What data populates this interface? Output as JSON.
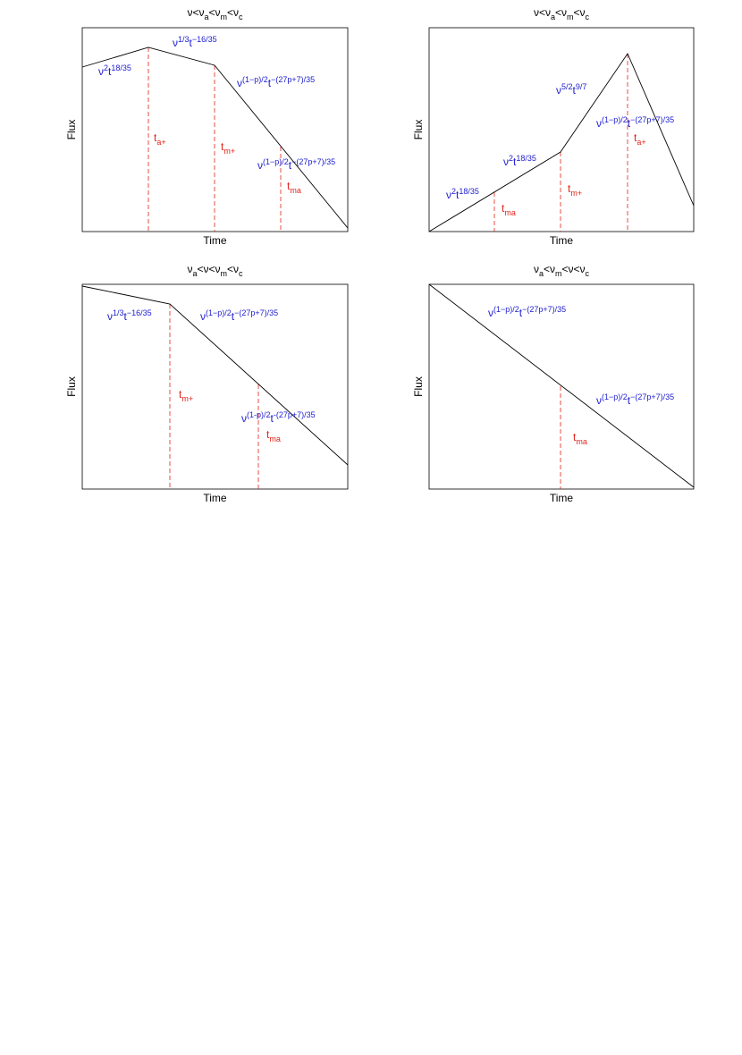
{
  "panels": [
    {
      "title": [
        {
          "base": "ν<ν"
        },
        {
          "sub": "a"
        },
        {
          "base": "<ν"
        },
        {
          "sub": "m"
        },
        {
          "base": "<ν"
        },
        {
          "sub": "c"
        }
      ],
      "xlabel": "Time",
      "ylabel": "Flux",
      "slopes": [
        [
          {
            "base": "ν"
          },
          {
            "sup": "2"
          },
          {
            "base": "t"
          },
          {
            "sup": "18/35"
          }
        ],
        [
          {
            "base": "ν"
          },
          {
            "sup": "1/3"
          },
          {
            "base": "t"
          },
          {
            "sup": "−16/35"
          }
        ],
        [
          {
            "base": "ν"
          },
          {
            "sup": "(1−p)/2"
          },
          {
            "base": "t"
          },
          {
            "sup": "−(27p+7)/35"
          }
        ],
        [
          {
            "base": "ν"
          },
          {
            "sup": "(1−p)/2"
          },
          {
            "base": "t"
          },
          {
            "sup": "−(27p+7)/35"
          }
        ]
      ],
      "times": [
        [
          {
            "base": "t"
          },
          {
            "sub": "a+"
          }
        ],
        [
          {
            "base": "t"
          },
          {
            "sub": "m+"
          }
        ],
        [
          {
            "base": "t"
          },
          {
            "sub": "ma"
          }
        ]
      ]
    },
    {
      "title": [
        {
          "base": "ν<ν"
        },
        {
          "sub": "a"
        },
        {
          "base": "<ν"
        },
        {
          "sub": "m"
        },
        {
          "base": "<ν"
        },
        {
          "sub": "c"
        }
      ],
      "xlabel": "Time",
      "ylabel": "Flux",
      "slopes": [
        [
          {
            "base": "ν"
          },
          {
            "sup": "2"
          },
          {
            "base": "t"
          },
          {
            "sup": "18/35"
          }
        ],
        [
          {
            "base": "ν"
          },
          {
            "sup": "2"
          },
          {
            "base": "t"
          },
          {
            "sup": "18/35"
          }
        ],
        [
          {
            "base": "ν"
          },
          {
            "sup": "5/2"
          },
          {
            "base": "t"
          },
          {
            "sup": "9/7"
          }
        ],
        [
          {
            "base": "ν"
          },
          {
            "sup": "(1−p)/2"
          },
          {
            "base": "t"
          },
          {
            "sup": "−(27p+7)/35"
          }
        ]
      ],
      "times": [
        [
          {
            "base": "t"
          },
          {
            "sub": "a+"
          }
        ],
        [
          {
            "base": "t"
          },
          {
            "sub": "m+"
          }
        ],
        [
          {
            "base": "t"
          },
          {
            "sub": "ma"
          }
        ]
      ]
    },
    {
      "title": [
        {
          "base": "ν"
        },
        {
          "sub": "a"
        },
        {
          "base": "<ν<ν"
        },
        {
          "sub": "m"
        },
        {
          "base": "<ν"
        },
        {
          "sub": "c"
        }
      ],
      "xlabel": "Time",
      "ylabel": "Flux",
      "slopes": [
        [
          {
            "base": "ν"
          },
          {
            "sup": "1/3"
          },
          {
            "base": "t"
          },
          {
            "sup": "−16/35"
          }
        ],
        [
          {
            "base": "ν"
          },
          {
            "sup": "(1−p)/2"
          },
          {
            "base": "t"
          },
          {
            "sup": "−(27p+7)/35"
          }
        ],
        [
          {
            "base": "ν"
          },
          {
            "sup": "(1-p)/2"
          },
          {
            "base": "t"
          },
          {
            "sup": "-(27p+7)/35"
          }
        ]
      ],
      "times": [
        [
          {
            "base": "t"
          },
          {
            "sub": "m+"
          }
        ],
        [
          {
            "base": "t"
          },
          {
            "sub": "ma"
          }
        ]
      ]
    },
    {
      "title": [
        {
          "base": "ν"
        },
        {
          "sub": "a"
        },
        {
          "base": "<ν"
        },
        {
          "sub": "m"
        },
        {
          "base": "<ν<ν"
        },
        {
          "sub": "c"
        }
      ],
      "xlabel": "Time",
      "ylabel": "Flux",
      "slopes": [
        [
          {
            "base": "ν"
          },
          {
            "sup": "(1−p)/2"
          },
          {
            "base": "t"
          },
          {
            "sup": "−(27p+7)/35"
          }
        ],
        [
          {
            "base": "ν"
          },
          {
            "sup": "(1−p)/2"
          },
          {
            "base": "t"
          },
          {
            "sup": "−(27p+7)/35"
          }
        ]
      ],
      "times": [
        [
          {
            "base": "t"
          },
          {
            "sub": "ma"
          }
        ]
      ]
    }
  ]
}
